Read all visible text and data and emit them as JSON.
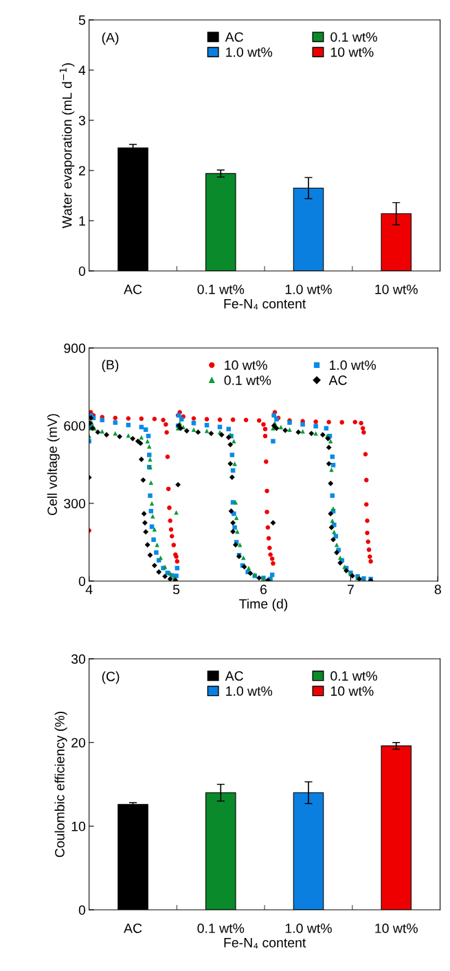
{
  "chart_data": [
    {
      "type": "bar",
      "categories": [
        "AC",
        "0.1 wt%",
        "1.0 wt%",
        "10 wt%"
      ],
      "xlabel": "Fe-N₄ content",
      "ylabel": "Water evaporation (mL d$^{−1}$)",
      "annotations": [
        "(A)"
      ],
      "ylim": [
        0,
        5
      ],
      "yticks": [
        0,
        1,
        2,
        3,
        4,
        5
      ],
      "grid": false,
      "legend": "top",
      "series": [
        {
          "name": "AC",
          "color": "#000000",
          "values": [
            2.45,
            null,
            null,
            null
          ],
          "errors": [
            0.07,
            null,
            null,
            null
          ]
        },
        {
          "name": "0.1 wt%",
          "color": "#0a8a2a",
          "values": [
            null,
            1.94,
            null,
            null
          ],
          "errors": [
            null,
            0.07,
            null,
            null
          ]
        },
        {
          "name": "1.0 wt%",
          "color": "#0a7fe0",
          "values": [
            null,
            null,
            1.65,
            null
          ],
          "errors": [
            null,
            null,
            0.21,
            null
          ]
        },
        {
          "name": "10 wt%",
          "color": "#ee0000",
          "values": [
            null,
            null,
            null,
            1.14
          ],
          "errors": [
            null,
            null,
            null,
            0.22
          ]
        }
      ]
    },
    {
      "type": "scatter",
      "xlabel": "Time (d)",
      "ylabel": "Cell voltage (mV)",
      "annotations": [
        "(B)"
      ],
      "xlim": [
        4,
        8
      ],
      "xticks": [
        4,
        5,
        6,
        7,
        8
      ],
      "ylim": [
        0,
        900
      ],
      "yticks": [
        0,
        300,
        600,
        900
      ],
      "grid": false,
      "legend": "top",
      "series": [
        {
          "name": "10 wt%",
          "color": "#ee0000",
          "marker": "circle",
          "x": [
            4.0,
            4.02,
            4.05,
            4.15,
            4.3,
            4.45,
            4.6,
            4.75,
            4.85,
            4.88,
            4.89,
            4.9,
            4.91,
            4.92,
            4.93,
            4.94,
            4.95,
            4.97,
            4.99,
            5.0,
            5.01,
            5.02,
            5.04,
            5.08,
            5.2,
            5.35,
            5.5,
            5.65,
            5.8,
            5.95,
            6.0,
            6.02,
            6.02,
            6.03,
            6.04,
            6.04,
            6.05,
            6.06,
            6.07,
            6.08,
            6.1,
            6.11,
            6.12,
            6.13,
            6.17,
            6.3,
            6.45,
            6.6,
            6.75,
            6.9,
            7.05,
            7.12,
            7.14,
            7.15,
            7.17,
            7.18,
            7.18,
            7.19,
            7.19,
            7.2,
            7.21,
            7.22,
            7.23
          ],
          "values": [
            195,
            652,
            640,
            633,
            630,
            628,
            627,
            626,
            622,
            605,
            574,
            480,
            356,
            283,
            233,
            199,
            173,
            139,
            102,
            94,
            76,
            640,
            652,
            635,
            628,
            625,
            623,
            623,
            622,
            620,
            605,
            587,
            560,
            461,
            348,
            267,
            207,
            165,
            128,
            102,
            86,
            68,
            640,
            652,
            630,
            620,
            617,
            615,
            614,
            613,
            614,
            610,
            590,
            574,
            490,
            390,
            296,
            233,
            186,
            152,
            121,
            94,
            76
          ]
        },
        {
          "name": "1.0 wt%",
          "color": "#0a8ae6",
          "marker": "square",
          "x": [
            4.0,
            4.01,
            4.02,
            4.05,
            4.15,
            4.3,
            4.45,
            4.6,
            4.65,
            4.68,
            4.69,
            4.69,
            4.7,
            4.71,
            4.72,
            4.74,
            4.77,
            4.8,
            4.85,
            4.9,
            4.95,
            5.0,
            5.01,
            5.02,
            5.03,
            5.06,
            5.2,
            5.35,
            5.5,
            5.6,
            5.63,
            5.64,
            5.65,
            5.65,
            5.66,
            5.67,
            5.69,
            5.72,
            5.76,
            5.82,
            5.9,
            6.0,
            6.08,
            6.1,
            6.11,
            6.12,
            6.15,
            6.3,
            6.45,
            6.6,
            6.72,
            6.76,
            6.79,
            6.8,
            6.79,
            6.8,
            6.81,
            6.83,
            6.86,
            6.9,
            6.95,
            7.0,
            7.08,
            7.15,
            7.23
          ],
          "values": [
            540,
            600,
            640,
            630,
            622,
            612,
            603,
            595,
            585,
            560,
            487,
            440,
            330,
            270,
            210,
            160,
            110,
            80,
            50,
            32,
            22,
            20,
            50,
            600,
            640,
            625,
            610,
            602,
            595,
            587,
            560,
            487,
            427,
            304,
            260,
            207,
            150,
            100,
            60,
            35,
            20,
            12,
            8,
            24,
            540,
            640,
            625,
            612,
            605,
            598,
            590,
            560,
            480,
            448,
            330,
            270,
            217,
            173,
            120,
            80,
            50,
            32,
            18,
            10,
            8
          ]
        },
        {
          "name": "0.1 wt%",
          "color": "#0a9a3a",
          "marker": "triangle",
          "x": [
            4.0,
            4.01,
            4.03,
            4.06,
            4.15,
            4.3,
            4.45,
            4.6,
            4.67,
            4.69,
            4.7,
            4.7,
            4.71,
            4.72,
            4.73,
            4.75,
            4.78,
            4.82,
            4.87,
            4.93,
            4.98,
            5.0,
            5.02,
            5.04,
            5.08,
            5.2,
            5.35,
            5.5,
            5.62,
            5.66,
            5.67,
            5.68,
            5.69,
            5.7,
            5.73,
            5.77,
            5.83,
            5.9,
            6.0,
            6.08,
            6.11,
            6.13,
            6.2,
            6.3,
            6.45,
            6.6,
            6.73,
            6.77,
            6.78,
            6.8,
            6.79,
            6.81,
            6.84,
            6.88,
            6.93,
            7.0,
            7.08,
            7.15
          ],
          "values": [
            560,
            590,
            612,
            590,
            578,
            570,
            562,
            555,
            540,
            520,
            470,
            440,
            380,
            300,
            250,
            200,
            140,
            90,
            55,
            30,
            15,
            265,
            590,
            610,
            595,
            585,
            580,
            575,
            565,
            540,
            453,
            304,
            244,
            191,
            140,
            90,
            50,
            25,
            10,
            3,
            590,
            610,
            595,
            585,
            578,
            570,
            560,
            540,
            430,
            280,
            233,
            190,
            140,
            90,
            55,
            28,
            12,
            3
          ]
        },
        {
          "name": "AC",
          "color": "#000000",
          "marker": "diamond",
          "x": [
            4.0,
            4.01,
            4.02,
            4.04,
            4.1,
            4.2,
            4.35,
            4.5,
            4.56,
            4.59,
            4.6,
            4.62,
            4.63,
            4.64,
            4.65,
            4.67,
            4.7,
            4.75,
            4.8,
            4.87,
            4.93,
            4.99,
            5.02,
            5.03,
            5.05,
            5.12,
            5.25,
            5.4,
            5.52,
            5.6,
            5.62,
            5.62,
            5.64,
            5.63,
            5.65,
            5.65,
            5.68,
            5.72,
            5.78,
            5.85,
            5.95,
            6.05,
            6.11,
            6.12,
            6.15,
            6.25,
            6.4,
            6.55,
            6.68,
            6.74,
            6.75,
            6.75,
            6.77,
            6.77,
            6.78,
            6.8,
            6.84,
            6.88,
            6.95,
            7.02,
            7.1,
            7.23
          ],
          "values": [
            400,
            610,
            630,
            590,
            575,
            565,
            558,
            550,
            540,
            532,
            470,
            390,
            260,
            225,
            190,
            140,
            100,
            60,
            35,
            18,
            8,
            3,
            372,
            600,
            590,
            580,
            575,
            570,
            565,
            555,
            527,
            453,
            401,
            270,
            225,
            191,
            140,
            95,
            55,
            30,
            12,
            3,
            225,
            600,
            590,
            582,
            575,
            570,
            565,
            550,
            516,
            453,
            377,
            260,
            207,
            160,
            110,
            70,
            40,
            20,
            8,
            2
          ]
        }
      ]
    },
    {
      "type": "bar",
      "categories": [
        "AC",
        "0.1 wt%",
        "1.0 wt%",
        "10 wt%"
      ],
      "xlabel": "Fe-N₄ content",
      "ylabel": "Coulombic efficiency (%)",
      "annotations": [
        "(C)"
      ],
      "ylim": [
        0,
        30
      ],
      "yticks": [
        0,
        10,
        20,
        30
      ],
      "grid": false,
      "legend": "top",
      "series": [
        {
          "name": "AC",
          "color": "#000000",
          "values": [
            12.6,
            null,
            null,
            null
          ],
          "errors": [
            0.2,
            null,
            null,
            null
          ]
        },
        {
          "name": "0.1 wt%",
          "color": "#0a8a2a",
          "values": [
            null,
            14.0,
            null,
            null
          ],
          "errors": [
            null,
            1.0,
            null,
            null
          ]
        },
        {
          "name": "1.0 wt%",
          "color": "#0a7fe0",
          "values": [
            null,
            null,
            14.0,
            null
          ],
          "errors": [
            null,
            null,
            1.3,
            null
          ]
        },
        {
          "name": "10 wt%",
          "color": "#ee0000",
          "values": [
            null,
            null,
            null,
            19.6
          ],
          "errors": [
            null,
            null,
            null,
            0.4
          ]
        }
      ]
    }
  ]
}
